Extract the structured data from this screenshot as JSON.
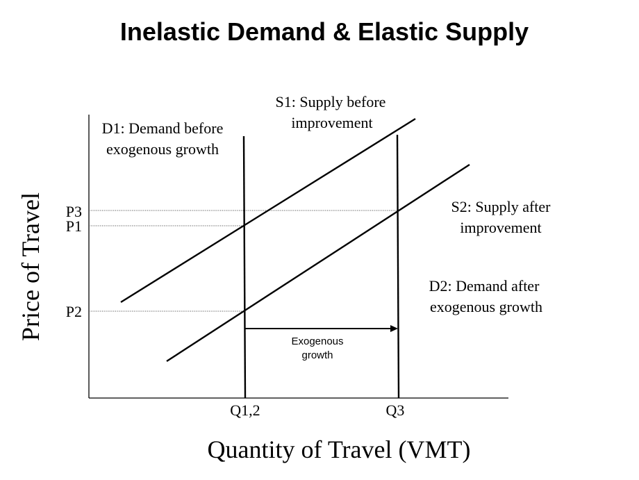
{
  "title": "Inelastic Demand & Elastic Supply",
  "axes": {
    "x_title": "Quantity of Travel (VMT)",
    "y_title": "Price of Travel"
  },
  "price_levels": {
    "p3": "P3",
    "p1": "P1",
    "p2": "P2"
  },
  "quantity_levels": {
    "q12": "Q1,2",
    "q3": "Q3"
  },
  "curves": {
    "d1": {
      "line1": "D1: Demand before",
      "line2": "exogenous growth"
    },
    "d2": {
      "line1": "D2: Demand after",
      "line2": "exogenous growth"
    },
    "s1": {
      "line1": "S1: Supply before",
      "line2": "improvement"
    },
    "s2": {
      "line1": "S2: Supply after",
      "line2": "improvement"
    }
  },
  "shift": {
    "line1": "Exogenous",
    "line2": "growth"
  }
}
